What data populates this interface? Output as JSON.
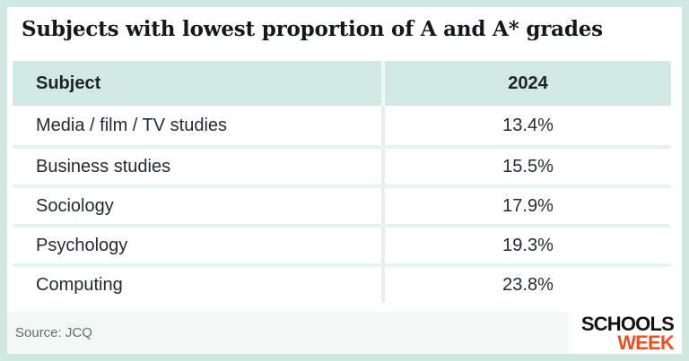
{
  "card": {
    "title": "Subjects with lowest proportion of A and A* grades"
  },
  "table": {
    "header": {
      "subject": "Subject",
      "year": "2024"
    },
    "rows": [
      {
        "subject": "Media / film / TV studies",
        "value": "13.4%"
      },
      {
        "subject": "Business studies",
        "value": "15.5%"
      },
      {
        "subject": "Sociology",
        "value": "17.9%"
      },
      {
        "subject": "Psychology",
        "value": "19.3%"
      },
      {
        "subject": "Computing",
        "value": "23.8%"
      }
    ]
  },
  "footer": {
    "source": "Source: JCQ",
    "logo": {
      "line1": "SCHOOLS",
      "line2": "WEEK"
    }
  },
  "colors": {
    "border_teal": "#cfe6e1",
    "header_bg": "#d2e8e3",
    "header_divider": "#eff9f6",
    "row_separator": "#e6f3f0",
    "column_divider": "#e2f1ed",
    "footer_bg": "#f3f7f6",
    "logo_orange": "#f04f23",
    "title_text": "#14181c",
    "body_text": "#222b32",
    "source_text": "#5e706c"
  },
  "chart_data": {
    "type": "table",
    "title": "Subjects with lowest proportion of A and A* grades",
    "columns": [
      "Subject",
      "2024"
    ],
    "categories": [
      "Media / film / TV studies",
      "Business studies",
      "Sociology",
      "Psychology",
      "Computing"
    ],
    "values": [
      13.4,
      15.5,
      17.9,
      19.3,
      23.8
    ],
    "unit": "%",
    "source": "JCQ",
    "legend_position": "none",
    "grid": "light-teal row separators"
  }
}
